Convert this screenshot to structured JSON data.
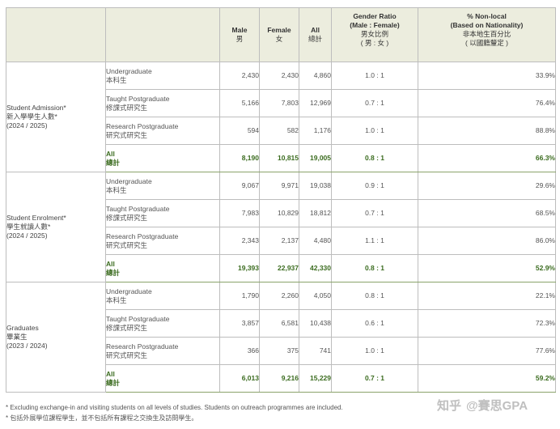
{
  "header": {
    "male": "Male",
    "male_zh": "男",
    "female": "Female",
    "female_zh": "女",
    "all": "All",
    "all_zh": "總計",
    "ratio_1": "Gender Ratio",
    "ratio_2": "(Male : Female)",
    "ratio_zh_1": "男女比例",
    "ratio_zh_2": "( 男 : 女 )",
    "nonlocal_1": "% Non-local",
    "nonlocal_2": "(Based on Nationality)",
    "nonlocal_zh_1": "非本地生百分比",
    "nonlocal_zh_2": "( 以國籍釐定 )"
  },
  "groups": [
    {
      "title": "Student Admission*",
      "title_zh": "新入學學生人數*",
      "period": "(2024 / 2025)",
      "rows": [
        {
          "level": "Undergraduate",
          "level_zh": "本科生",
          "male": "2,430",
          "female": "2,430",
          "all": "4,860",
          "ratio": "1.0 : 1",
          "nonlocal": "33.9%"
        },
        {
          "level": "Taught Postgraduate",
          "level_zh": "修課式研究生",
          "male": "5,166",
          "female": "7,803",
          "all": "12,969",
          "ratio": "0.7 : 1",
          "nonlocal": "76.4%"
        },
        {
          "level": "Research Postgraduate",
          "level_zh": "研究式研究生",
          "male": "594",
          "female": "582",
          "all": "1,176",
          "ratio": "1.0 : 1",
          "nonlocal": "88.8%"
        }
      ],
      "total": {
        "level": "All",
        "level_zh": "總計",
        "male": "8,190",
        "female": "10,815",
        "all": "19,005",
        "ratio": "0.8 : 1",
        "nonlocal": "66.3%"
      }
    },
    {
      "title": "Student Enrolment*",
      "title_zh": "學生就讀人數*",
      "period": "(2024 / 2025)",
      "rows": [
        {
          "level": "Undergraduate",
          "level_zh": "本科生",
          "male": "9,067",
          "female": "9,971",
          "all": "19,038",
          "ratio": "0.9 : 1",
          "nonlocal": "29.6%"
        },
        {
          "level": "Taught Postgraduate",
          "level_zh": "修課式研究生",
          "male": "7,983",
          "female": "10,829",
          "all": "18,812",
          "ratio": "0.7 : 1",
          "nonlocal": "68.5%"
        },
        {
          "level": "Research Postgraduate",
          "level_zh": "研究式研究生",
          "male": "2,343",
          "female": "2,137",
          "all": "4,480",
          "ratio": "1.1 : 1",
          "nonlocal": "86.0%"
        }
      ],
      "total": {
        "level": "All",
        "level_zh": "總計",
        "male": "19,393",
        "female": "22,937",
        "all": "42,330",
        "ratio": "0.8 : 1",
        "nonlocal": "52.9%"
      }
    },
    {
      "title": "Graduates",
      "title_zh": "畢業生",
      "period": "(2023 / 2024)",
      "rows": [
        {
          "level": "Undergraduate",
          "level_zh": "本科生",
          "male": "1,790",
          "female": "2,260",
          "all": "4,050",
          "ratio": "0.8 : 1",
          "nonlocal": "22.1%"
        },
        {
          "level": "Taught Postgraduate",
          "level_zh": "修課式研究生",
          "male": "3,857",
          "female": "6,581",
          "all": "10,438",
          "ratio": "0.6 : 1",
          "nonlocal": "72.3%"
        },
        {
          "level": "Research Postgraduate",
          "level_zh": "研究式研究生",
          "male": "366",
          "female": "375",
          "all": "741",
          "ratio": "1.0 : 1",
          "nonlocal": "77.6%"
        }
      ],
      "total": {
        "level": "All",
        "level_zh": "總計",
        "male": "6,013",
        "female": "9,216",
        "all": "15,229",
        "ratio": "0.7 : 1",
        "nonlocal": "59.2%"
      }
    }
  ],
  "footnotes": {
    "en": "* Excluding exchange-in and visiting students on all levels of studies. Students on outreach programmes are included.",
    "zh": "* 包括外展學位課程學生，並不包括所有課程之交換生及訪問學生。"
  },
  "watermark": {
    "platform": "知乎",
    "author": "@賽思GPA"
  }
}
